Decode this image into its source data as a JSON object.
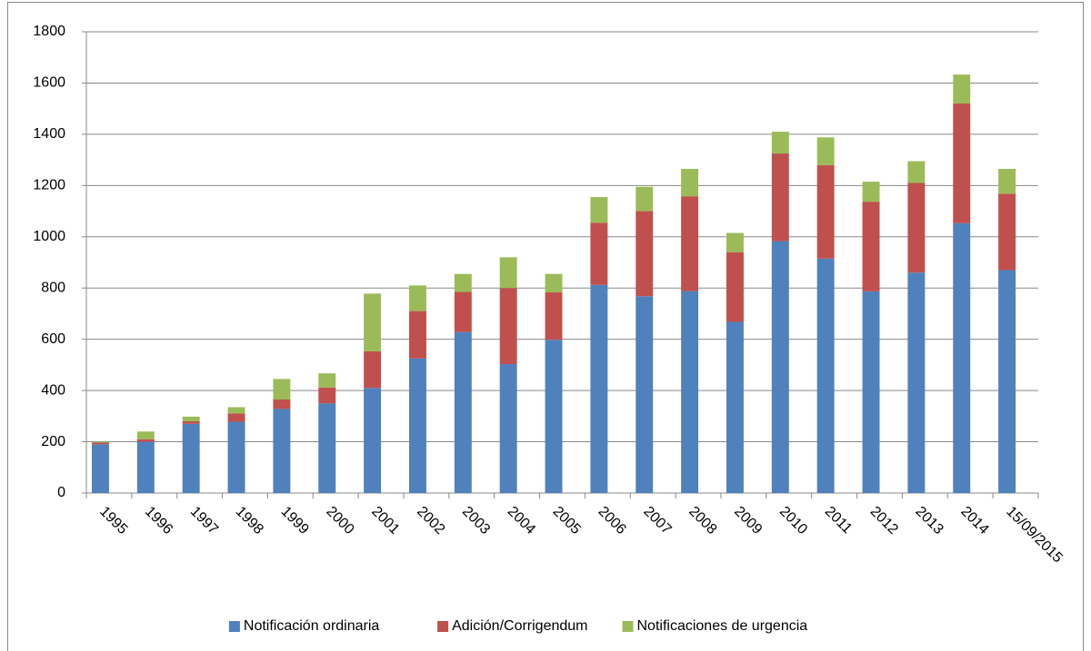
{
  "chart_data": {
    "type": "stacked_bar",
    "categories": [
      "1995",
      "1996",
      "1997",
      "1998",
      "1999",
      "2000",
      "2001",
      "2002",
      "2003",
      "2004",
      "2005",
      "2006",
      "2007",
      "2008",
      "2009",
      "2010",
      "2011",
      "2012",
      "2013",
      "2014",
      "15/09/2015"
    ],
    "series": [
      {
        "name": "Notificación ordinaria",
        "color": "#4f81bd",
        "values": [
          190,
          200,
          270,
          278,
          328,
          350,
          410,
          525,
          628,
          503,
          598,
          812,
          768,
          788,
          668,
          983,
          915,
          787,
          860,
          1053,
          870
        ]
      },
      {
        "name": "Adición/Corrigendum",
        "color": "#c0504d",
        "values": [
          7,
          10,
          10,
          32,
          37,
          62,
          143,
          185,
          157,
          297,
          185,
          243,
          332,
          370,
          272,
          342,
          365,
          350,
          350,
          467,
          298
        ]
      },
      {
        "name": "Notificaciones de urgencia",
        "color": "#9bbb59",
        "values": [
          3,
          30,
          18,
          25,
          80,
          55,
          225,
          100,
          70,
          120,
          72,
          100,
          95,
          107,
          75,
          85,
          108,
          78,
          85,
          113,
          97
        ]
      }
    ],
    "ylim": [
      0,
      1800
    ],
    "yticks": [
      0,
      200,
      400,
      600,
      800,
      1000,
      1200,
      1400,
      1600,
      1800
    ],
    "grid": true,
    "legend": "bottom"
  }
}
